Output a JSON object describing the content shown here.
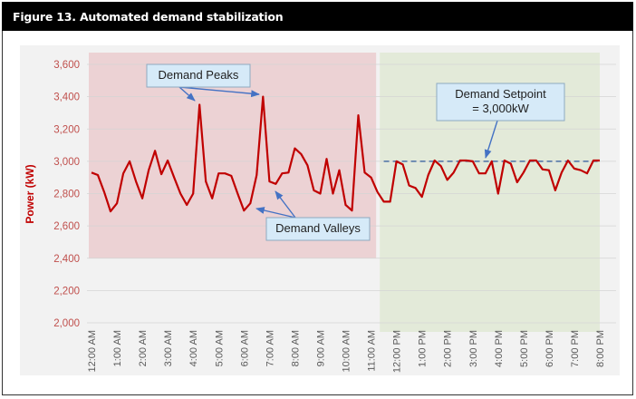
{
  "title": "Figure 13. Automated demand stabilization",
  "colors": {
    "line": "#c00000",
    "setpoint": "#4a6fa5",
    "manual_region": "#ecd2d4",
    "automated_region": "#e3ead9",
    "callout_fill": "#d6eaf8",
    "callout_stroke": "#8ea9c1",
    "arrow": "#4472c4"
  },
  "chart_data": {
    "type": "line",
    "title": "Figure 13. Automated demand stabilization",
    "xlabel": "",
    "ylabel": "Power (kW)",
    "ylim": [
      2000,
      3600
    ],
    "yticks": [
      2000,
      2200,
      2400,
      2600,
      2800,
      3000,
      3200,
      3400,
      3600
    ],
    "ytick_labels": [
      "2,000",
      "2,200",
      "2,400",
      "2,600",
      "2,800",
      "3,000",
      "3,200",
      "3,400",
      "3,600"
    ],
    "xlim_hours": [
      0,
      20
    ],
    "xtick_hours": [
      0,
      1,
      2,
      3,
      4,
      5,
      6,
      7,
      8,
      9,
      10,
      11,
      12,
      13,
      14,
      15,
      16,
      17,
      18,
      19,
      20
    ],
    "xtick_labels": [
      "12:00 AM",
      "1:00 AM",
      "2:00 AM",
      "3:00 AM",
      "4:00 AM",
      "5:00 AM",
      "6:00 AM",
      "7:00 AM",
      "8:00 AM",
      "9:00 AM",
      "10:00 AM",
      "11:00 AM",
      "12:00 PM",
      "1:00 PM",
      "2:00 PM",
      "3:00 PM",
      "4:00 PM",
      "5:00 PM",
      "6:00 PM",
      "7:00 PM",
      "8:00 PM"
    ],
    "grid": true,
    "interval_hours": 0.25,
    "series": [
      {
        "name": "Power (kW)",
        "values": [
          2930,
          2915,
          2810,
          2690,
          2740,
          2925,
          3000,
          2875,
          2770,
          2945,
          3065,
          2920,
          3005,
          2900,
          2800,
          2730,
          2800,
          3350,
          2875,
          2770,
          2925,
          2925,
          2910,
          2800,
          2695,
          2740,
          2915,
          3400,
          2875,
          2860,
          2925,
          2930,
          3080,
          3045,
          2975,
          2820,
          2800,
          3015,
          2800,
          2945,
          2730,
          2695,
          3285,
          2930,
          2900,
          2810,
          2750,
          2750,
          3000,
          2980,
          2850,
          2835,
          2780,
          2915,
          3005,
          2970,
          2885,
          2930,
          3005,
          3005,
          3000,
          2925,
          2925,
          3000,
          2800,
          3005,
          2985,
          2870,
          2930,
          3005,
          3005,
          2950,
          2945,
          2820,
          2930,
          3005,
          2955,
          2945,
          2925,
          3005,
          3005
        ]
      }
    ],
    "setpoint": {
      "value": 3000,
      "start_hour": 11.5,
      "end_hour": 20
    },
    "regions": [
      {
        "name": "manual",
        "start_hour": 0,
        "end_hour": 11.2,
        "y_range": [
          2400,
          3600
        ]
      },
      {
        "name": "automated",
        "start_hour": 11.45,
        "end_hour": 20,
        "y_range": [
          2000,
          3600
        ]
      }
    ],
    "annotations": [
      {
        "name": "demand-peaks",
        "text": "Demand Peaks",
        "points_to_hours": [
          4.0,
          6.75
        ]
      },
      {
        "name": "demand-valleys",
        "text": "Demand Valleys",
        "points_to_hours": [
          6.0,
          7.0
        ]
      },
      {
        "name": "demand-setpoint",
        "lines": [
          "Demand Setpoint",
          "= 3,000kW"
        ],
        "points_to_hours": [
          15.5
        ]
      }
    ]
  }
}
